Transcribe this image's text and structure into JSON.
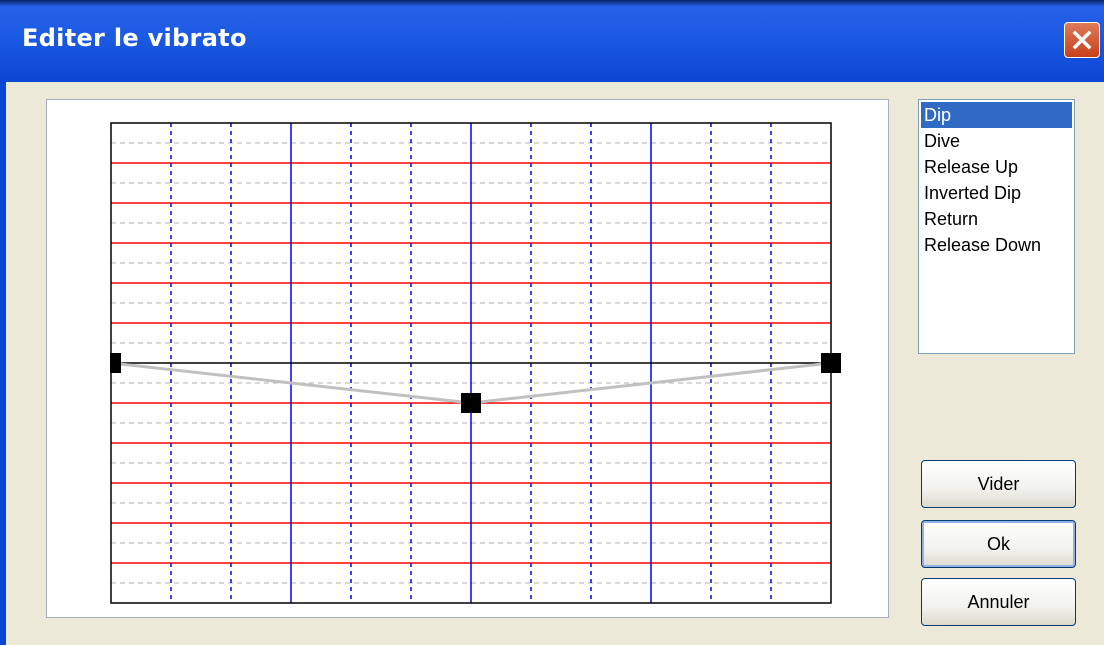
{
  "window": {
    "title": "Editer le vibrato"
  },
  "presets": [
    {
      "label": "Dip",
      "selected": true
    },
    {
      "label": "Dive",
      "selected": false
    },
    {
      "label": "Release Up",
      "selected": false
    },
    {
      "label": "Inverted Dip",
      "selected": false
    },
    {
      "label": "Return",
      "selected": false
    },
    {
      "label": "Release Down",
      "selected": false
    }
  ],
  "buttons": {
    "clear": "Vider",
    "ok": "Ok",
    "cancel": "Annuler"
  },
  "vibrato_curve": {
    "time_steps": 12,
    "pitch_steps": 12,
    "points": [
      {
        "t": 0,
        "pitch": 0
      },
      {
        "t": 6,
        "pitch": -1
      },
      {
        "t": 12,
        "pitch": 0
      }
    ]
  },
  "colors": {
    "title_bar": "#0b46d2",
    "major_vertical": "#0000ff",
    "minor_vertical": "#0000ff",
    "pitch_line": "#ff0000",
    "minor_horizontal": "#b0b0b0",
    "curve": "#c0c0c0",
    "handle": "#000000",
    "selection": "#316ac5"
  }
}
